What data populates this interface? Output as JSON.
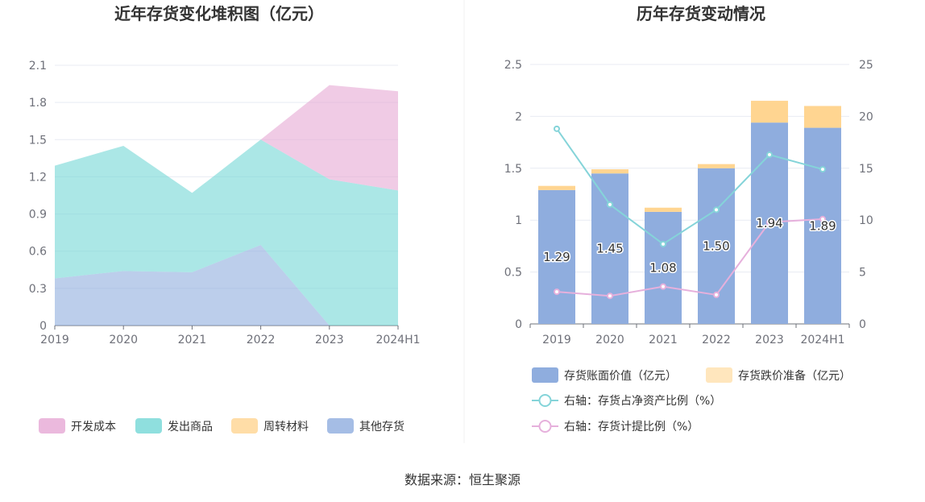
{
  "source_label": "数据来源：恒生聚源",
  "colors": {
    "kaifa": "#e6a8d4",
    "fachu": "#73d7d6",
    "zhouzhuan": "#ffd591",
    "qita": "#8fadde",
    "bar_value": "#8fadde",
    "bar_reserve": "#ffd591",
    "line_ratio": "#85d4d9",
    "line_provision": "#e6b0dc"
  },
  "chart_data": [
    {
      "type": "area",
      "title": "近年存货变化堆积图（亿元）",
      "categories": [
        "2019",
        "2020",
        "2021",
        "2022",
        "2023",
        "2024H1"
      ],
      "yticks": [
        "0",
        "0.3",
        "0.6",
        "0.9",
        "1.2",
        "1.5",
        "1.8",
        "2.1"
      ],
      "ylim": [
        0,
        2.1
      ],
      "stacked": true,
      "series": [
        {
          "name": "其他存货",
          "values": [
            0.38,
            0.44,
            0.43,
            0.65,
            0,
            0
          ]
        },
        {
          "name": "周转材料",
          "values": [
            0,
            0,
            0,
            0,
            0,
            0
          ]
        },
        {
          "name": "发出商品",
          "values": [
            0.91,
            1.01,
            0.64,
            0.85,
            1.18,
            1.09
          ]
        },
        {
          "name": "开发成本",
          "values": [
            0,
            0,
            0,
            0,
            0.76,
            0.8
          ]
        }
      ],
      "legend": [
        "开发成本",
        "发出商品",
        "周转材料",
        "其他存货"
      ],
      "legend_position": "bottom"
    },
    {
      "type": "bar",
      "title": "历年存货变动情况",
      "categories": [
        "2019",
        "2020",
        "2021",
        "2022",
        "2023",
        "2024H1"
      ],
      "yticks_left": [
        "0",
        "0.5",
        "1",
        "1.5",
        "2",
        "2.5"
      ],
      "yticks_right": [
        "0",
        "5",
        "10",
        "15",
        "20",
        "25"
      ],
      "ylim_left": [
        0,
        2.5
      ],
      "ylim_right": [
        0,
        25
      ],
      "stacked": true,
      "series": [
        {
          "name": "存货账面价值（亿元）",
          "values": [
            1.29,
            1.45,
            1.08,
            1.5,
            1.94,
            1.89
          ],
          "labels": [
            "1.29",
            "1.45",
            "1.08",
            "1.50",
            "1.94",
            "1.89"
          ]
        },
        {
          "name": "存货跌价准备（亿元）",
          "values": [
            0.04,
            0.04,
            0.04,
            0.04,
            0.21,
            0.21
          ]
        }
      ],
      "lines": [
        {
          "name": "右轴：存货占净资产比例（%）",
          "values": [
            18.8,
            11.5,
            7.7,
            11.0,
            16.3,
            14.9
          ]
        },
        {
          "name": "右轴：存货计提比例（%）",
          "values": [
            3.1,
            2.7,
            3.6,
            2.8,
            9.8,
            10.1
          ]
        }
      ],
      "legend_position": "bottom"
    }
  ]
}
